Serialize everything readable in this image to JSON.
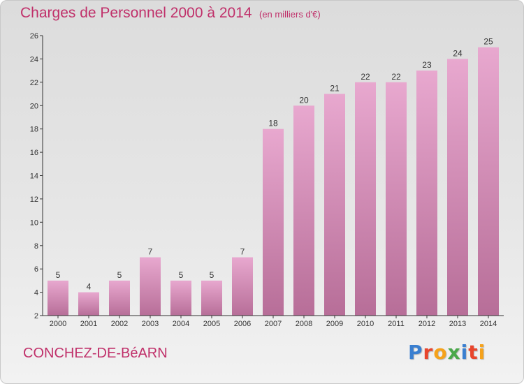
{
  "header": {
    "title": "Charges de Personnel 2000 à 2014",
    "subtitle": "(en milliers d'€)"
  },
  "footer": {
    "commune": "CONCHEZ-DE-BéARN",
    "brand_letters": [
      {
        "char": "P",
        "color": "#3a7fd0"
      },
      {
        "char": "r",
        "color": "#e8452c"
      },
      {
        "char": "o",
        "color": "#f5a21b"
      },
      {
        "char": "x",
        "color": "#4aa84a"
      },
      {
        "char": "i",
        "color": "#3a7fd0"
      },
      {
        "char": "t",
        "color": "#e8452c"
      },
      {
        "char": "i",
        "color": "#f5a21b"
      }
    ]
  },
  "colors": {
    "bar_top": "#e8a8cf",
    "bar_bottom": "#b76e98",
    "accent": "#c0306a",
    "axis": "#333333"
  },
  "chart_data": {
    "type": "bar",
    "categories": [
      "2000",
      "2001",
      "2002",
      "2003",
      "2004",
      "2005",
      "2006",
      "2007",
      "2008",
      "2009",
      "2010",
      "2011",
      "2012",
      "2013",
      "2014"
    ],
    "values": [
      5,
      4,
      5,
      7,
      5,
      5,
      7,
      18,
      20,
      21,
      22,
      22,
      23,
      24,
      25
    ],
    "ylim": [
      2,
      26
    ],
    "yticks": [
      2,
      4,
      6,
      8,
      10,
      12,
      14,
      16,
      18,
      20,
      22,
      24,
      26
    ],
    "grid": false,
    "legend": "none"
  }
}
